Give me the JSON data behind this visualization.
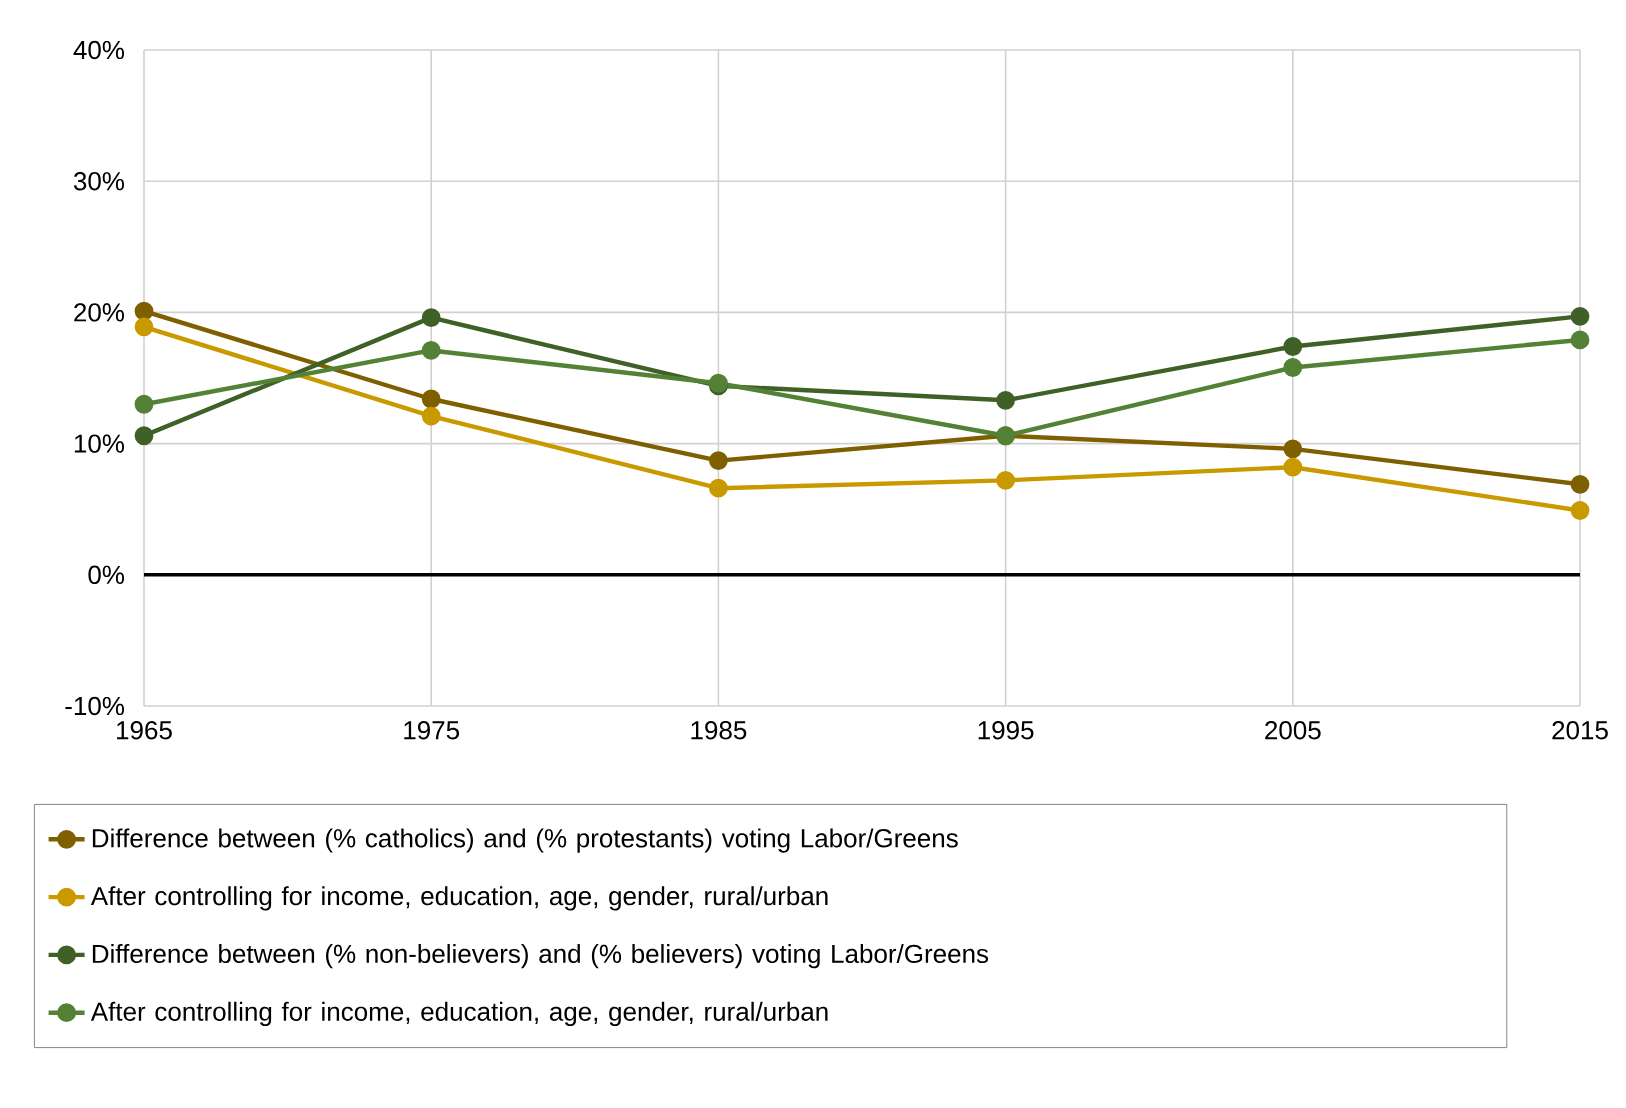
{
  "chart_data": {
    "type": "line",
    "x": [
      1965,
      1975,
      1985,
      1995,
      2005,
      2015
    ],
    "series": [
      {
        "name": "Difference between (% catholics) and (% protestants) voting Labor/Greens",
        "color": "#7f6000",
        "values": [
          20.1,
          13.4,
          8.7,
          10.6,
          9.6,
          6.9
        ]
      },
      {
        "name": "After controlling for income, education, age, gender, rural/urban",
        "color": "#c99a00",
        "values": [
          18.9,
          12.1,
          6.6,
          7.2,
          8.2,
          4.9
        ]
      },
      {
        "name": "Difference between (% non-believers) and (% believers) voting Labor/Greens",
        "color": "#3f6128",
        "values": [
          10.6,
          19.6,
          14.4,
          13.3,
          17.4,
          19.7
        ]
      },
      {
        "name": "After controlling for income, education, age, gender, rural/urban",
        "color": "#538135",
        "values": [
          13.0,
          17.1,
          14.6,
          10.6,
          15.8,
          17.9
        ]
      }
    ],
    "xlim": [
      1965,
      2015
    ],
    "xticks": [
      1965,
      1975,
      1985,
      1995,
      2005,
      2015
    ],
    "ylim": [
      -10,
      40
    ],
    "yticks": [
      {
        "value": -10,
        "label": "-10%"
      },
      {
        "value": 0,
        "label": "0%"
      },
      {
        "value": 10,
        "label": "10%"
      },
      {
        "value": 20,
        "label": "20%"
      },
      {
        "value": 30,
        "label": "30%"
      },
      {
        "value": 40,
        "label": "40%"
      }
    ],
    "ref_lines": [
      {
        "axis": "y",
        "value": 0,
        "color": "#000000"
      }
    ],
    "grid": true,
    "legend": "bottom",
    "marker": "circle",
    "line_style": "solid"
  }
}
